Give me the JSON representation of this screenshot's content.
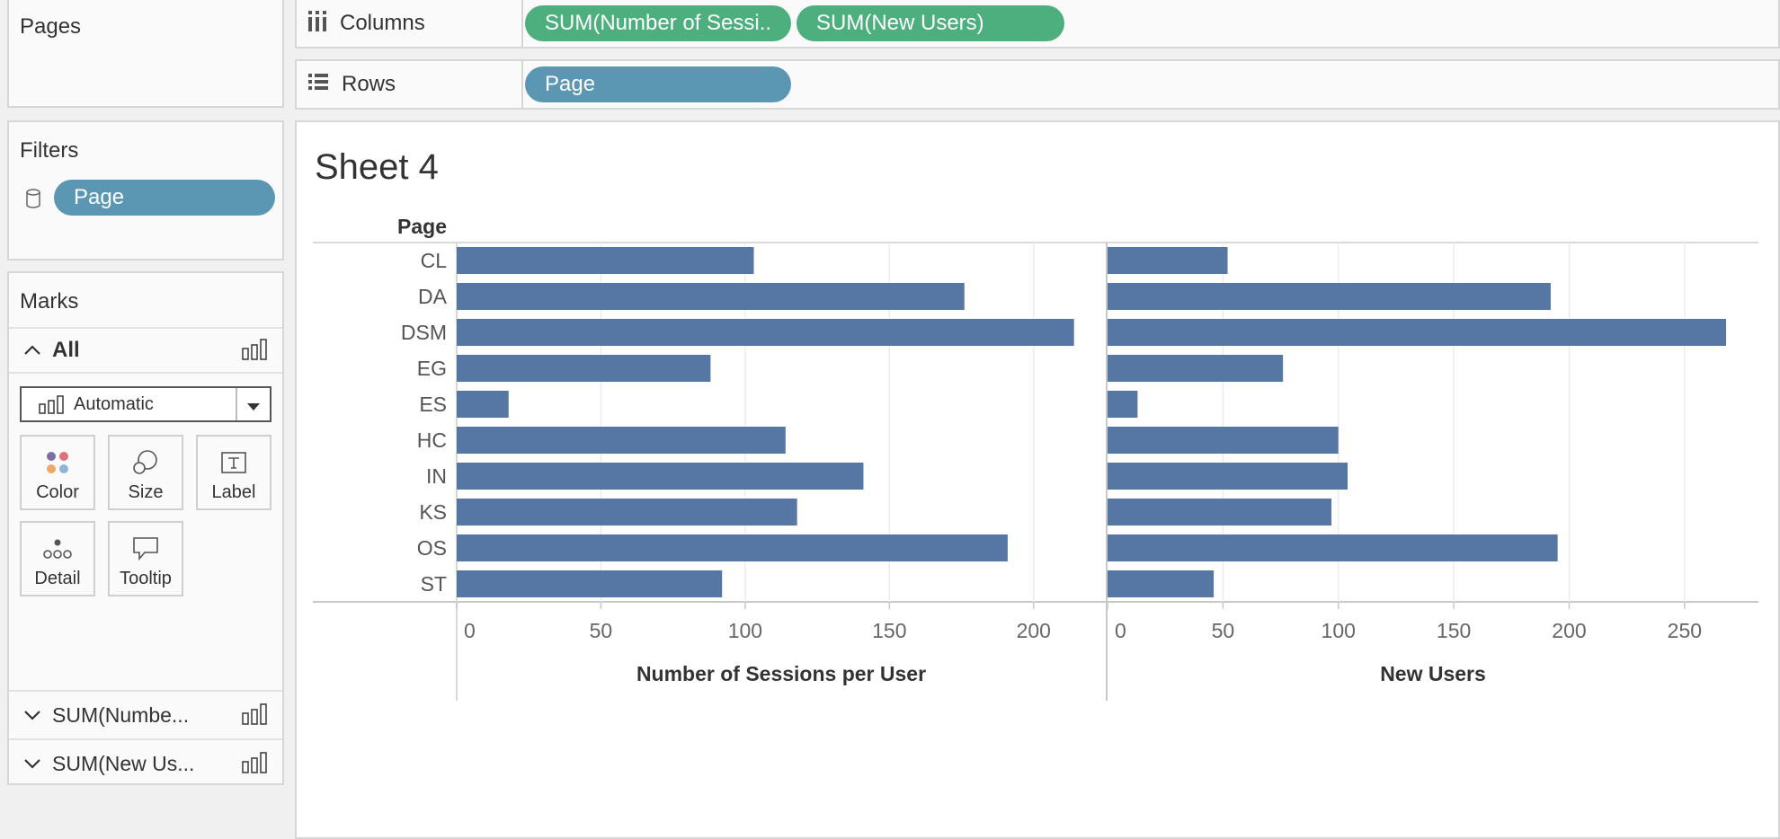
{
  "pages_panel": {
    "title": "Pages"
  },
  "filters_panel": {
    "title": "Filters",
    "pill": "Page"
  },
  "marks_panel": {
    "title": "Marks",
    "all_label": "All",
    "mark_type": "Automatic",
    "buttons": {
      "color": "Color",
      "size": "Size",
      "label": "Label",
      "detail": "Detail",
      "tooltip": "Tooltip"
    },
    "measures": [
      "SUM(Numbe...",
      "SUM(New Us..."
    ]
  },
  "columns_shelf": {
    "label": "Columns",
    "pills": [
      "SUM(Number of Sessi..",
      "SUM(New Users)"
    ]
  },
  "rows_shelf": {
    "label": "Rows",
    "pills": [
      "Page"
    ]
  },
  "sheet": {
    "title": "Sheet 4",
    "row_header": "Page"
  },
  "colors": {
    "bar": "#5677a4",
    "green_pill": "#4caf7d",
    "blue_pill": "#5b97b3"
  },
  "chart_data": [
    {
      "type": "bar",
      "orientation": "horizontal",
      "categories": [
        "CL",
        "DA",
        "DSM",
        "EG",
        "ES",
        "HC",
        "IN",
        "KS",
        "OS",
        "ST"
      ],
      "values": [
        103,
        176,
        214,
        88,
        18,
        114,
        141,
        118,
        191,
        92
      ],
      "xlabel": "Number of Sessions per User",
      "ticks": [
        0,
        50,
        100,
        150,
        200
      ],
      "xlim": [
        0,
        225
      ]
    },
    {
      "type": "bar",
      "orientation": "horizontal",
      "categories": [
        "CL",
        "DA",
        "DSM",
        "EG",
        "ES",
        "HC",
        "IN",
        "KS",
        "OS",
        "ST"
      ],
      "values": [
        52,
        192,
        268,
        76,
        13,
        100,
        104,
        97,
        195,
        46
      ],
      "xlabel": "New Users",
      "ticks": [
        0,
        50,
        100,
        150,
        200,
        250
      ],
      "xlim": [
        0,
        282
      ]
    }
  ]
}
